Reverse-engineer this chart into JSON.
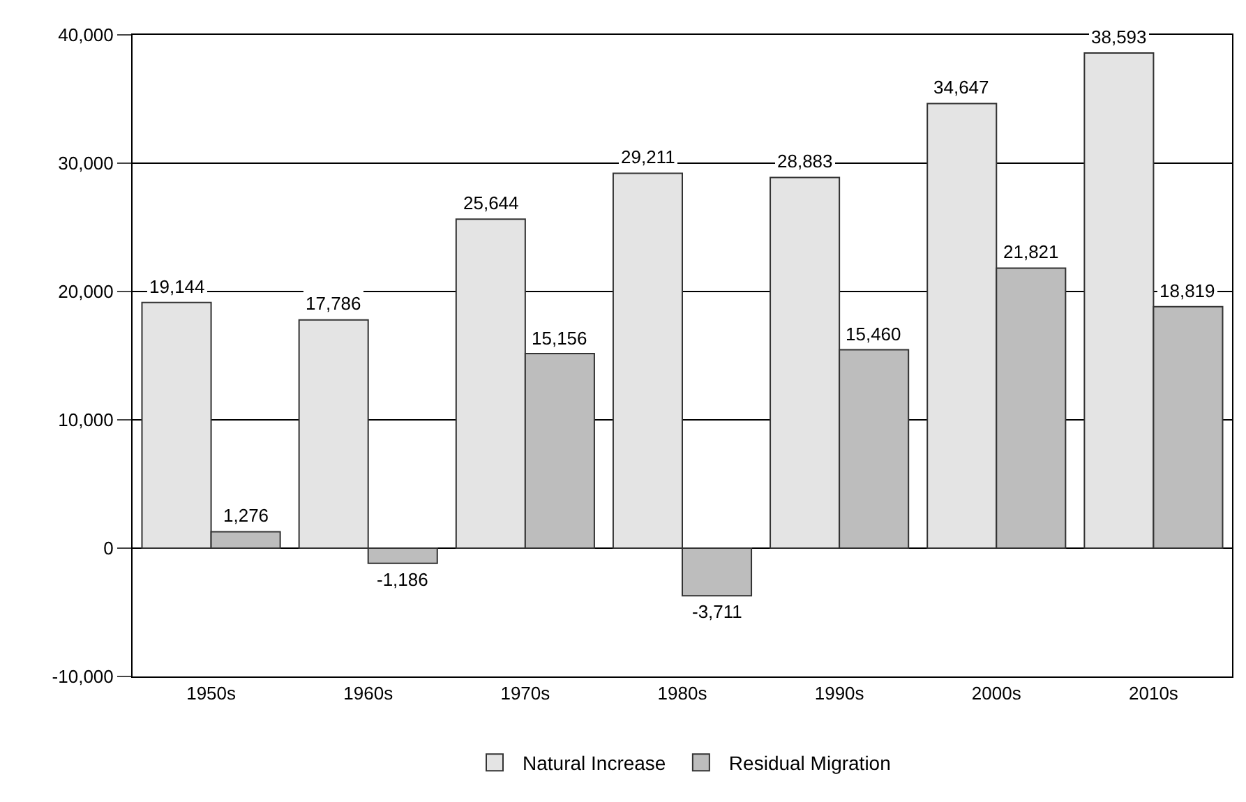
{
  "chart_data": {
    "type": "bar",
    "categories": [
      "1950s",
      "1960s",
      "1970s",
      "1980s",
      "1990s",
      "2000s",
      "2010s"
    ],
    "series": [
      {
        "name": "Natural Increase",
        "color": "#e4e4e4",
        "values": [
          19144,
          17786,
          25644,
          29211,
          28883,
          34647,
          38593
        ],
        "value_labels": [
          "19,144",
          "17,786",
          "25,644",
          "29,211",
          "28,883",
          "34,647",
          "38,593"
        ]
      },
      {
        "name": "Residual Migration",
        "color": "#bdbdbd",
        "values": [
          1276,
          -1186,
          15156,
          -3711,
          15460,
          21821,
          18819
        ],
        "value_labels": [
          "1,276",
          "-1,186",
          "15,156",
          "-3,711",
          "15,460",
          "21,821",
          "18,819"
        ]
      }
    ],
    "ylim": [
      -10000,
      40000
    ],
    "yticks": [
      {
        "value": -10000,
        "label": "-10,000"
      },
      {
        "value": 0,
        "label": "0"
      },
      {
        "value": 10000,
        "label": "10,000"
      },
      {
        "value": 20000,
        "label": "20,000"
      },
      {
        "value": 30000,
        "label": "30,000"
      },
      {
        "value": 40000,
        "label": "40,000"
      }
    ],
    "grid": "y",
    "legend": "bottom"
  }
}
